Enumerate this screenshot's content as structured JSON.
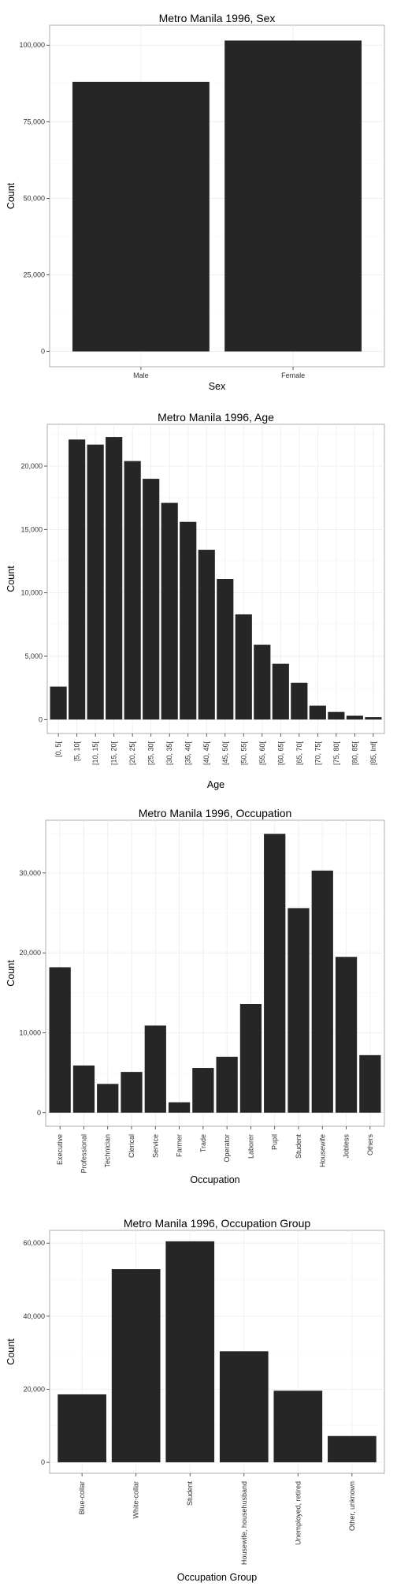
{
  "chart_data": [
    {
      "type": "bar",
      "title": "Metro Manila 1996, Sex",
      "xlabel": "Sex",
      "ylabel": "Count",
      "categories": [
        "Male",
        "Female"
      ],
      "values": [
        88000,
        101500
      ],
      "ylim": [
        -5000,
        106500
      ],
      "yticks": [
        0,
        25000,
        50000,
        75000,
        100000
      ],
      "ytick_labels": [
        "0",
        "25,000",
        "50,000",
        "75,000",
        "100,000"
      ],
      "xlabel_rotate": false,
      "grid": true,
      "bar_color": "#262626"
    },
    {
      "type": "bar",
      "title": "Metro Manila 1996, Age",
      "xlabel": "Age",
      "ylabel": "Count",
      "categories": [
        "[0, 5[",
        "[5, 10[",
        "[10, 15[",
        "[15, 20[",
        "[20, 25[",
        "[25, 30[",
        "[30, 35[",
        "[35, 40[",
        "[40, 45[",
        "[45, 50[",
        "[50, 55[",
        "[55, 60[",
        "[60, 65[",
        "[65, 70[",
        "[70, 75[",
        "[75, 80[",
        "[80, 85[",
        "[85, Inf["
      ],
      "values": [
        2600,
        22100,
        21700,
        22300,
        20400,
        19000,
        17100,
        15600,
        13400,
        11100,
        8300,
        5900,
        4400,
        2900,
        1100,
        600,
        300,
        200
      ],
      "ylim": [
        -1100,
        23300
      ],
      "yticks": [
        0,
        5000,
        10000,
        15000,
        20000
      ],
      "ytick_labels": [
        "0",
        "5,000",
        "10,000",
        "15,000",
        "20,000"
      ],
      "xlabel_rotate": true,
      "grid": true,
      "bar_color": "#262626"
    },
    {
      "type": "bar",
      "title": "Metro Manila 1996, Occupation",
      "xlabel": "Occupation",
      "ylabel": "Count",
      "categories": [
        "Executive",
        "Professional",
        "Technician",
        "Clerical",
        "Service",
        "Farmer",
        "Trade",
        "Operator",
        "Laborer",
        "Pupil",
        "Student",
        "Housewife",
        "Jobless",
        "Others"
      ],
      "values": [
        18200,
        5900,
        3600,
        5100,
        10900,
        1300,
        5600,
        7000,
        13600,
        34900,
        25600,
        30300,
        19500,
        7200
      ],
      "ylim": [
        -1700,
        36600
      ],
      "yticks": [
        0,
        10000,
        20000,
        30000
      ],
      "ytick_labels": [
        "0",
        "10,000",
        "20,000",
        "30,000"
      ],
      "xlabel_rotate": true,
      "grid": true,
      "bar_color": "#262626"
    },
    {
      "type": "bar",
      "title": "Metro Manila 1996, Occupation Group",
      "xlabel": "Occupation Group",
      "ylabel": "Count",
      "categories": [
        "Blue-collar",
        "White-collar",
        "Student",
        "Housewife, househusband",
        "Unemployed, retired",
        "Other, unknown"
      ],
      "values": [
        18600,
        52900,
        60500,
        30400,
        19600,
        7200
      ],
      "ylim": [
        -3000,
        63500
      ],
      "yticks": [
        0,
        20000,
        40000,
        60000
      ],
      "ytick_labels": [
        "0",
        "20,000",
        "40,000",
        "60,000"
      ],
      "xlabel_rotate": true,
      "grid": true,
      "bar_color": "#262626"
    }
  ]
}
